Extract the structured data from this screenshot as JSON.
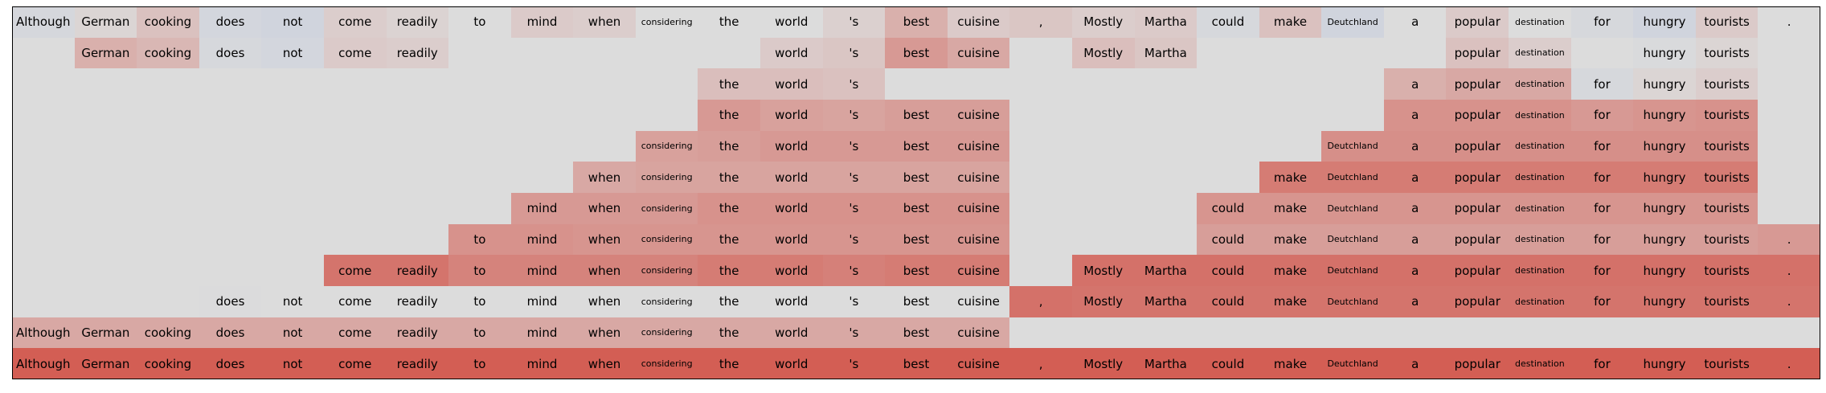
{
  "chart_data": {
    "type": "heatmap",
    "tokens": [
      "Although",
      "German",
      "cooking",
      "does",
      "not",
      "come",
      "readily",
      "to",
      "mind",
      "when",
      "considering",
      "the",
      "world",
      "'s",
      "best",
      "cuisine",
      ",",
      "Mostly",
      "Martha",
      "could",
      "make",
      "Deutchland",
      "a",
      "popular",
      "destination",
      "for",
      "hungry",
      "tourists",
      "."
    ],
    "small_tokens": [
      "considering",
      "Deutchland",
      "destination"
    ],
    "rows": [
      [
        -0.12,
        0.05,
        0.18,
        -0.15,
        -0.2,
        0.1,
        0.06,
        0.0,
        0.12,
        0.1,
        0.0,
        0.0,
        0.0,
        0.08,
        0.3,
        0.12,
        0.15,
        0.1,
        0.12,
        -0.1,
        0.18,
        -0.2,
        0.0,
        0.12,
        0.0,
        -0.1,
        -0.2,
        0.12,
        0.0
      ],
      [
        null,
        0.3,
        0.25,
        -0.1,
        -0.15,
        0.12,
        0.1,
        null,
        null,
        null,
        null,
        null,
        0.12,
        0.15,
        0.45,
        0.35,
        null,
        0.2,
        0.15,
        null,
        null,
        null,
        null,
        0.18,
        0.1,
        null,
        -0.05,
        0.05,
        null
      ],
      [
        null,
        null,
        null,
        null,
        null,
        null,
        null,
        null,
        null,
        null,
        null,
        0.2,
        0.2,
        0.18,
        null,
        null,
        null,
        null,
        null,
        null,
        null,
        null,
        0.3,
        0.35,
        0.35,
        -0.1,
        0.05,
        0.1,
        null
      ],
      [
        null,
        null,
        null,
        null,
        null,
        null,
        null,
        null,
        null,
        null,
        null,
        0.45,
        0.4,
        0.38,
        0.42,
        0.42,
        null,
        null,
        null,
        null,
        null,
        null,
        0.5,
        0.5,
        0.5,
        0.45,
        0.48,
        0.5,
        null
      ],
      [
        null,
        null,
        null,
        null,
        null,
        null,
        null,
        null,
        null,
        null,
        0.4,
        0.42,
        0.45,
        0.45,
        0.45,
        0.45,
        null,
        null,
        null,
        null,
        null,
        0.52,
        0.52,
        0.52,
        0.52,
        0.52,
        0.52,
        0.52,
        null
      ],
      [
        null,
        null,
        null,
        null,
        null,
        null,
        null,
        null,
        null,
        0.35,
        0.38,
        0.38,
        0.38,
        0.38,
        0.38,
        0.38,
        null,
        null,
        null,
        null,
        0.65,
        0.65,
        0.65,
        0.65,
        0.65,
        0.65,
        0.65,
        0.65,
        null
      ],
      [
        null,
        null,
        null,
        null,
        null,
        null,
        null,
        null,
        0.45,
        0.45,
        0.45,
        0.5,
        0.5,
        0.5,
        0.5,
        0.5,
        null,
        null,
        null,
        0.48,
        0.48,
        0.48,
        0.48,
        0.48,
        0.48,
        0.48,
        0.48,
        0.48,
        null
      ],
      [
        null,
        null,
        null,
        null,
        null,
        null,
        null,
        0.5,
        0.5,
        0.48,
        0.48,
        0.48,
        0.48,
        0.48,
        0.48,
        0.48,
        null,
        null,
        null,
        0.42,
        0.42,
        0.42,
        0.42,
        0.42,
        0.42,
        0.42,
        0.42,
        0.42,
        0.45
      ],
      [
        null,
        null,
        null,
        null,
        null,
        0.7,
        0.7,
        0.6,
        0.6,
        0.6,
        0.6,
        0.65,
        0.65,
        0.62,
        0.65,
        0.65,
        null,
        0.72,
        0.72,
        0.72,
        0.72,
        0.72,
        0.72,
        0.72,
        0.72,
        0.72,
        0.72,
        0.72,
        0.72
      ],
      [
        null,
        null,
        null,
        -0.02,
        0.0,
        0.0,
        0.0,
        0.0,
        0.0,
        0.0,
        0.0,
        0.0,
        0.0,
        0.0,
        0.0,
        0.0,
        0.72,
        0.7,
        0.7,
        0.7,
        0.7,
        0.7,
        0.7,
        0.7,
        0.7,
        0.7,
        0.7,
        0.7,
        0.7
      ],
      [
        0.35,
        0.35,
        0.35,
        0.35,
        0.35,
        0.35,
        0.35,
        0.35,
        0.35,
        0.35,
        0.35,
        0.35,
        0.35,
        0.35,
        0.35,
        0.35,
        null,
        null,
        null,
        null,
        null,
        null,
        null,
        null,
        null,
        null,
        null,
        null,
        null
      ],
      [
        0.85,
        0.85,
        0.85,
        0.85,
        0.85,
        0.85,
        0.85,
        0.85,
        0.85,
        0.85,
        0.85,
        0.85,
        0.85,
        0.85,
        0.85,
        0.85,
        0.85,
        0.85,
        0.85,
        0.85,
        0.85,
        0.85,
        0.85,
        0.85,
        0.85,
        0.85,
        0.85,
        0.85,
        0.85
      ]
    ],
    "colors": {
      "background": "#dcdcdc",
      "neutral": "#dcdcdc",
      "positive": "#d1483c",
      "negative": "#9fb6e0"
    }
  }
}
